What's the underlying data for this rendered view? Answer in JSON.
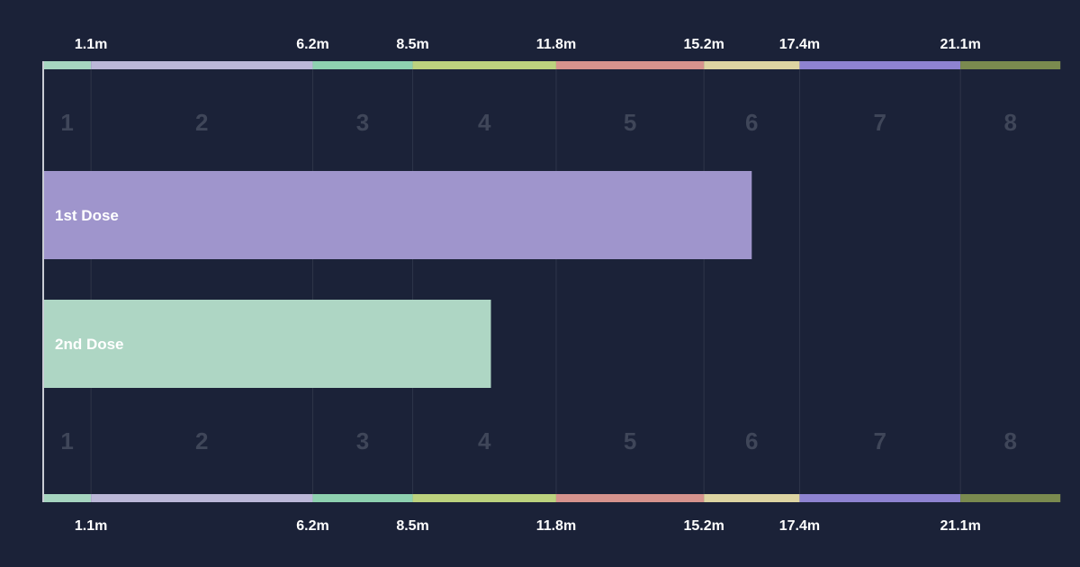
{
  "chart_data": {
    "type": "bar",
    "orientation": "horizontal",
    "x_unit": "m",
    "xlim": [
      0,
      23.4
    ],
    "group_boundaries": [
      0,
      1.1,
      6.2,
      8.5,
      11.8,
      15.2,
      17.4,
      21.1
    ],
    "boundary_tick_labels": [
      "1.1m",
      "6.2m",
      "8.5m",
      "11.8m",
      "15.2m",
      "17.4m",
      "21.1m"
    ],
    "groups": [
      {
        "label": "1",
        "start": 0,
        "end": 1.1,
        "color": "#a6d5c0"
      },
      {
        "label": "2",
        "start": 1.1,
        "end": 6.2,
        "color": "#bbb8d8"
      },
      {
        "label": "3",
        "start": 6.2,
        "end": 8.5,
        "color": "#8ed1b0"
      },
      {
        "label": "4",
        "start": 8.5,
        "end": 11.8,
        "color": "#bcd27e"
      },
      {
        "label": "5",
        "start": 11.8,
        "end": 15.2,
        "color": "#d6938d"
      },
      {
        "label": "6",
        "start": 15.2,
        "end": 17.4,
        "color": "#ddd4a2"
      },
      {
        "label": "7",
        "start": 17.4,
        "end": 21.1,
        "color": "#8e83d1"
      },
      {
        "label": "8",
        "start": 21.1,
        "end": 23.4,
        "color": "#7a8a4f"
      }
    ],
    "series": [
      {
        "name": "1st Dose",
        "value": 16.3,
        "color": "#9f95cc"
      },
      {
        "name": "2nd Dose",
        "value": 10.3,
        "color": "#aed6c4"
      }
    ],
    "grid": true,
    "background": "#1b2238"
  }
}
